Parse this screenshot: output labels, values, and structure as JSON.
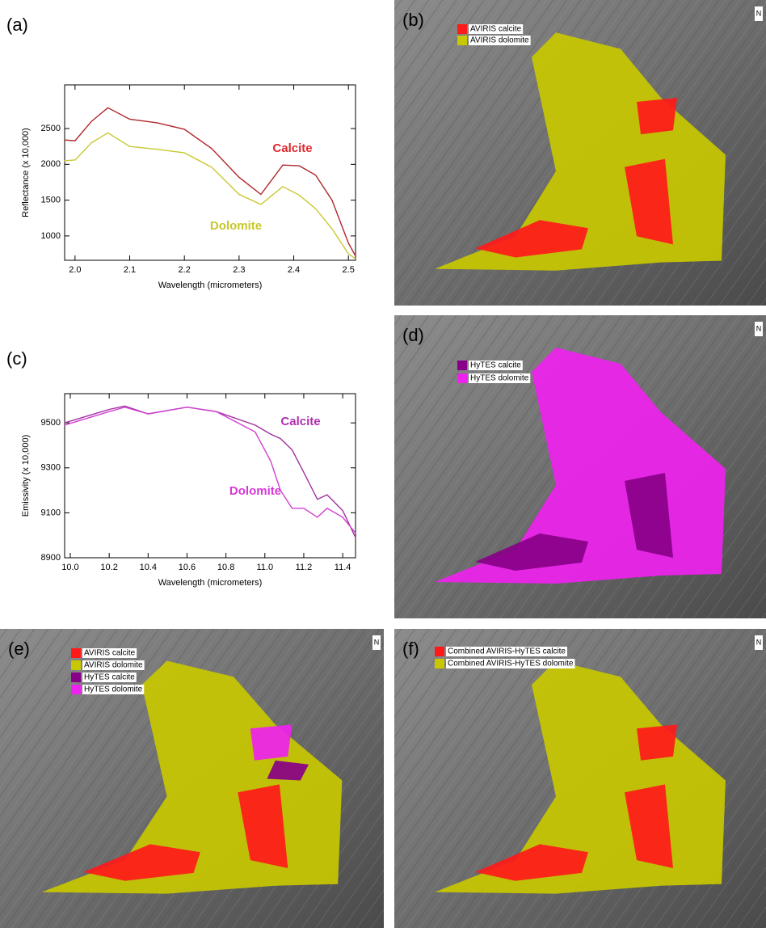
{
  "chart_data": [
    {
      "type": "line",
      "panel_label": "(a)",
      "xlabel": "Wavelength (micrometers)",
      "ylabel": "Reflectance (x 10,000)",
      "x": [
        1.98,
        2.0,
        2.03,
        2.06,
        2.1,
        2.15,
        2.2,
        2.25,
        2.3,
        2.34,
        2.38,
        2.41,
        2.44,
        2.47,
        2.5,
        2.513
      ],
      "series": [
        {
          "name": "Calcite",
          "color": "#b0262c",
          "label_color": "#e0282c",
          "values": [
            2340,
            2330,
            2600,
            2790,
            2630,
            2580,
            2490,
            2220,
            1820,
            1580,
            1990,
            1980,
            1850,
            1500,
            900,
            720
          ]
        },
        {
          "name": "Dolomite",
          "color": "#c8c832",
          "label_color": "#c8c82a",
          "values": [
            2050,
            2060,
            2300,
            2440,
            2250,
            2210,
            2160,
            1960,
            1580,
            1440,
            1690,
            1570,
            1380,
            1100,
            750,
            680
          ]
        }
      ],
      "xlim": [
        1.981,
        2.513
      ],
      "ylim": [
        660,
        3110
      ],
      "xticks": [
        {
          "value": 2.0,
          "label": "2.0"
        },
        2.1,
        2.2,
        2.3,
        2.4,
        {
          "value": 2.5,
          "label": "2.5"
        }
      ],
      "yticks": [
        1000,
        1500,
        2000,
        2500
      ]
    },
    {
      "type": "line",
      "panel_label": "(c)",
      "xlabel": "Wavelength (micrometers)",
      "ylabel": "Emissivity (x 10,000)",
      "x": [
        9.97,
        10.2,
        10.28,
        10.4,
        10.6,
        10.75,
        10.95,
        11.03,
        11.08,
        11.14,
        11.2,
        11.27,
        11.32,
        11.4,
        11.466
      ],
      "series": [
        {
          "name": "Calcite",
          "color": "#a030a0",
          "label_color": "#b030b0",
          "values": [
            9500,
            9560,
            9575,
            9540,
            9570,
            9550,
            9490,
            9450,
            9430,
            9380,
            9280,
            9160,
            9180,
            9110,
            8990
          ]
        },
        {
          "name": "Dolomite",
          "color": "#d040d0",
          "label_color": "#d838d8",
          "values": [
            9490,
            9550,
            9570,
            9540,
            9570,
            9550,
            9460,
            9330,
            9200,
            9120,
            9120,
            9080,
            9120,
            9080,
            9010
          ]
        }
      ],
      "xlim": [
        9.971,
        11.466
      ],
      "ylim": [
        8900,
        9630
      ],
      "xticks": [
        {
          "value": 10.0,
          "label": "10.0"
        },
        10.2,
        10.4,
        10.6,
        10.8,
        {
          "value": 11.0,
          "label": "11.0"
        },
        11.2,
        11.4
      ],
      "yticks": [
        8900,
        9100,
        9300,
        9500
      ]
    }
  ],
  "maps": [
    {
      "label": "(b)",
      "north": "N",
      "legend": [
        {
          "text": "AVIRIS calcite",
          "color": "#ff1a1a"
        },
        {
          "text": "AVIRIS dolomite",
          "color": "#c8c800"
        }
      ]
    },
    {
      "label": "(d)",
      "north": "N",
      "legend": [
        {
          "text": "HyTES calcite",
          "color": "#880088"
        },
        {
          "text": "HyTES dolomite",
          "color": "#ee22ee"
        }
      ]
    },
    {
      "label": "(e)",
      "north": "N",
      "legend": [
        {
          "text": "AVIRIS calcite",
          "color": "#ff1a1a"
        },
        {
          "text": "AVIRIS dolomite",
          "color": "#c8c800"
        },
        {
          "text": "HyTES calcite",
          "color": "#880088"
        },
        {
          "text": "HyTES dolomite",
          "color": "#ee22ee"
        }
      ]
    },
    {
      "label": "(f)",
      "north": "N",
      "legend": [
        {
          "text": "Combined AVIRIS-HyTES calcite",
          "color": "#ff1a1a"
        },
        {
          "text": "Combined AVIRIS-HyTES dolomite",
          "color": "#c8c800"
        }
      ]
    }
  ]
}
